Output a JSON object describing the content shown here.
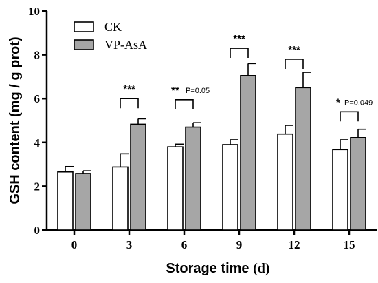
{
  "chart_data": {
    "type": "bar",
    "xlabel": "Storage time",
    "xlabel_unit": "(d)",
    "ylabel": "GSH content (mg / g prot)",
    "ylim": [
      0,
      10
    ],
    "yticks": [
      0,
      2,
      4,
      6,
      8,
      10
    ],
    "categories": [
      "0",
      "3",
      "6",
      "9",
      "12",
      "15"
    ],
    "legend_position": "top-left",
    "grid": false,
    "series": [
      {
        "name": "CK",
        "color": "#ffffff",
        "values": [
          2.65,
          2.88,
          3.8,
          3.9,
          4.38,
          3.67
        ],
        "errors": [
          0.25,
          0.6,
          0.12,
          0.22,
          0.4,
          0.45
        ]
      },
      {
        "name": "VP-AsA",
        "color": "#a6a6a6",
        "values": [
          2.58,
          4.83,
          4.7,
          7.05,
          6.5,
          4.22
        ],
        "errors": [
          0.12,
          0.25,
          0.2,
          0.55,
          0.7,
          0.38
        ]
      }
    ],
    "annotations": [
      {
        "category": "3",
        "stars": "***",
        "p": "",
        "bracket_y": 6.0
      },
      {
        "category": "6",
        "stars": "**",
        "p": "P=0.05",
        "bracket_y": 5.95
      },
      {
        "category": "9",
        "stars": "***",
        "p": "",
        "bracket_y": 8.3
      },
      {
        "category": "12",
        "stars": "***",
        "p": "",
        "bracket_y": 7.8
      },
      {
        "category": "15",
        "stars": "*",
        "p": "P=0.049",
        "bracket_y": 5.4
      }
    ]
  }
}
